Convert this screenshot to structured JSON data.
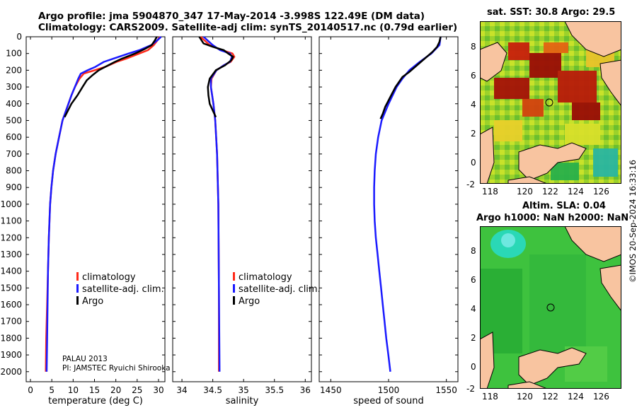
{
  "header": {
    "title_line1": "Argo profile: jma 5904870_347 17-May-2014 -3.998S 122.49E (DM data)",
    "title_line2": "Climatology: CARS2009. Satellite-adj clim: synTS_20140517.nc (0.79d earlier)"
  },
  "colors": {
    "climatology": "#ff2a1a",
    "satellite": "#1a1aff",
    "argo": "#000000"
  },
  "legend": {
    "climatology": "climatology",
    "satellite": "satellite-adj. clim.",
    "argo": "Argo"
  },
  "annotation": {
    "line1": "PALAU 2013",
    "line2": "PI: JAMSTEC Ryuichi Shirooka"
  },
  "depth_ticks": [
    "0",
    "100",
    "200",
    "300",
    "400",
    "500",
    "600",
    "700",
    "800",
    "900",
    "1000",
    "1100",
    "1200",
    "1300",
    "1400",
    "1500",
    "1600",
    "1700",
    "1800",
    "1900",
    "2000"
  ],
  "map_sst": {
    "title": "sat. SST: 30.8 Argo: 29.5",
    "xticks": [
      "118",
      "120",
      "122",
      "124",
      "126"
    ],
    "yticks": [
      "8",
      "6",
      "4",
      "2",
      "0",
      "-2"
    ]
  },
  "map_sla": {
    "title1": "Altim. SLA: 0.04",
    "title2": "Argo h1000: NaN h2000: NaN",
    "xticks": [
      "118",
      "120",
      "122",
      "124",
      "126"
    ],
    "yticks": [
      "8",
      "6",
      "4",
      "2",
      "0",
      "-2"
    ]
  },
  "stamp": "©IMOS 20-Sep-2024 16:33:16",
  "chart_data": [
    {
      "type": "line",
      "xlabel": "temperature (deg C)",
      "ylabel": "depth",
      "xlim": [
        -1,
        31.5
      ],
      "ylim": [
        2060,
        0
      ],
      "xticks": [
        "0",
        "5",
        "10",
        "15",
        "20",
        "25",
        "30"
      ],
      "xtick_values": [
        0,
        5,
        10,
        15,
        20,
        25,
        30
      ],
      "series": [
        {
          "name": "climatology",
          "depth": [
            0,
            20,
            50,
            80,
            100,
            130,
            150,
            180,
            200,
            220,
            250,
            300,
            350,
            400,
            450,
            500,
            600,
            700,
            800,
            900,
            1000,
            1200,
            1400,
            1600,
            1800,
            2000
          ],
          "values": [
            30.3,
            29.8,
            28.9,
            27.5,
            25.5,
            22.5,
            20.2,
            17.5,
            15,
            12.5,
            11.5,
            10.4,
            9.6,
            8.9,
            8.2,
            7.5,
            6.7,
            5.9,
            5.3,
            4.9,
            4.6,
            4.3,
            4.1,
            3.9,
            3.7,
            3.6
          ]
        },
        {
          "name": "satellite-adj. clim.",
          "depth": [
            0,
            20,
            50,
            80,
            100,
            130,
            150,
            180,
            200,
            220,
            250,
            300,
            350,
            400,
            450,
            500,
            600,
            700,
            800,
            900,
            1000,
            1200,
            1400,
            1600,
            1800,
            2000
          ],
          "values": [
            30.6,
            29.8,
            28.3,
            25.5,
            23,
            19.5,
            17.2,
            15.2,
            13.4,
            11.8,
            11.2,
            10.4,
            9.6,
            8.9,
            8.2,
            7.5,
            6.7,
            5.9,
            5.3,
            4.9,
            4.6,
            4.3,
            4.1,
            4.0,
            3.9,
            3.8
          ]
        },
        {
          "name": "Argo",
          "depth": [
            0,
            20,
            50,
            70,
            100,
            130,
            150,
            180,
            200,
            230,
            260,
            300,
            350,
            400,
            450,
            480
          ],
          "values": [
            29.6,
            29.2,
            28.4,
            27,
            24.5,
            21.5,
            19.8,
            17.5,
            16,
            14.5,
            13.2,
            12.2,
            11,
            9.6,
            8.6,
            8
          ]
        }
      ]
    },
    {
      "type": "line",
      "xlabel": "salinity",
      "ylabel": "depth",
      "xlim": [
        33.85,
        36.1
      ],
      "ylim": [
        2060,
        0
      ],
      "xticks": [
        "34",
        "34.5",
        "35",
        "35.5",
        "36"
      ],
      "xtick_values": [
        34,
        34.5,
        35,
        35.5,
        36
      ],
      "series": [
        {
          "name": "climatology",
          "depth": [
            0,
            50,
            80,
            100,
            120,
            150,
            170,
            200,
            250,
            300,
            400,
            500,
            700,
            1000,
            1500,
            2000
          ],
          "values": [
            34.3,
            34.45,
            34.65,
            34.82,
            34.85,
            34.79,
            34.68,
            34.56,
            34.48,
            34.47,
            34.51,
            34.54,
            34.57,
            34.59,
            34.6,
            34.6
          ]
        },
        {
          "name": "satellite-adj. clim.",
          "depth": [
            0,
            50,
            80,
            100,
            120,
            150,
            170,
            200,
            250,
            300,
            400,
            500,
            700,
            1000,
            1500,
            2000
          ],
          "values": [
            34.35,
            34.5,
            34.62,
            34.78,
            34.81,
            34.78,
            34.68,
            34.56,
            34.47,
            34.47,
            34.51,
            34.54,
            34.57,
            34.59,
            34.6,
            34.61
          ]
        },
        {
          "name": "Argo",
          "depth": [
            0,
            40,
            60,
            80,
            100,
            120,
            140,
            170,
            200,
            250,
            300,
            350,
            400,
            440,
            480
          ],
          "values": [
            34.28,
            34.35,
            34.5,
            34.68,
            34.75,
            34.83,
            34.8,
            34.7,
            34.55,
            34.45,
            34.42,
            34.43,
            34.45,
            34.5,
            34.55
          ]
        }
      ]
    },
    {
      "type": "line",
      "xlabel": "speed of sound",
      "ylabel": "depth",
      "xlim": [
        1440,
        1560
      ],
      "ylim": [
        2060,
        0
      ],
      "xticks": [
        "1450",
        "1500",
        "1550"
      ],
      "xtick_values": [
        1450,
        1500,
        1550
      ],
      "series": [
        {
          "name": "satellite-adj. clim.",
          "depth": [
            0,
            50,
            100,
            150,
            200,
            250,
            300,
            400,
            500,
            600,
            700,
            800,
            900,
            1000,
            1100,
            1200,
            1300,
            1400,
            1500,
            1600,
            1700,
            1800,
            1900,
            2000
          ],
          "values": [
            1545,
            1544,
            1537,
            1527,
            1518,
            1512,
            1507,
            1500,
            1494,
            1491,
            1489,
            1488,
            1487.5,
            1487.5,
            1488,
            1489,
            1490.5,
            1492,
            1493.5,
            1495,
            1496.5,
            1498,
            1499.8,
            1501.5
          ]
        },
        {
          "name": "Argo",
          "depth": [
            0,
            30,
            60,
            90,
            120,
            150,
            180,
            210,
            240,
            270,
            300,
            340,
            380,
            420,
            460,
            490
          ],
          "values": [
            1545,
            1544,
            1542,
            1538,
            1533,
            1528,
            1523,
            1518,
            1512,
            1509,
            1506,
            1503,
            1500,
            1497,
            1495,
            1493
          ]
        }
      ]
    }
  ]
}
